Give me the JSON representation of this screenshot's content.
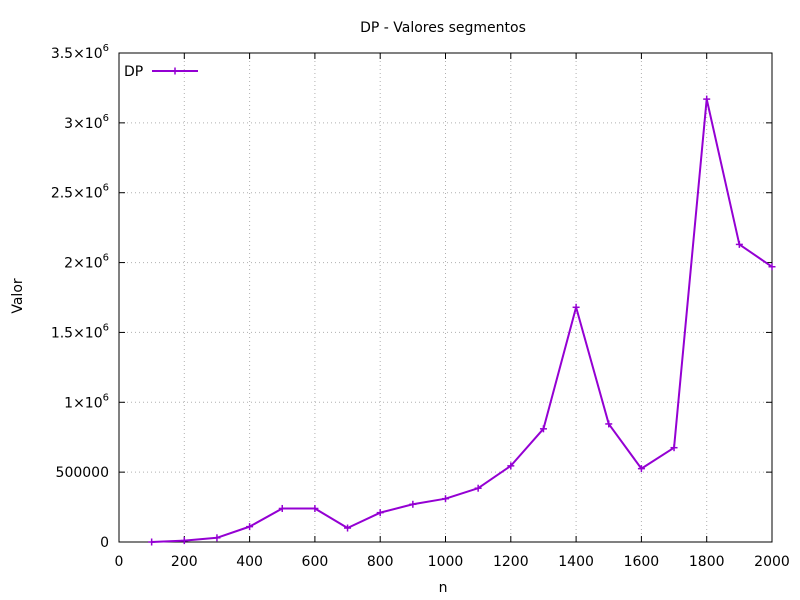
{
  "colors": {
    "series": "#9400D3",
    "grid": "#b0b0b0",
    "axis": "#000000"
  },
  "chart_data": {
    "type": "line",
    "title": "DP - Valores segmentos",
    "xlabel": "n",
    "ylabel": "Valor",
    "xlim": [
      0,
      2000
    ],
    "ylim": [
      0,
      3500000
    ],
    "x_ticks": [
      0,
      200,
      400,
      600,
      800,
      1000,
      1200,
      1400,
      1600,
      1800,
      2000
    ],
    "x_tick_labels": [
      "0",
      "200",
      "400",
      "600",
      "800",
      "1000",
      "1200",
      "1400",
      "1600",
      "1800",
      "2000"
    ],
    "y_ticks": [
      0,
      500000,
      1000000,
      1500000,
      2000000,
      2500000,
      3000000,
      3500000
    ],
    "y_tick_labels": [
      {
        "mantissa": "0",
        "exp": ""
      },
      {
        "mantissa": "500000",
        "exp": ""
      },
      {
        "mantissa": "1×10",
        "exp": "6"
      },
      {
        "mantissa": "1.5×10",
        "exp": "6"
      },
      {
        "mantissa": "2×10",
        "exp": "6"
      },
      {
        "mantissa": "2.5×10",
        "exp": "6"
      },
      {
        "mantissa": "3×10",
        "exp": "6"
      },
      {
        "mantissa": "3.5×10",
        "exp": "6"
      }
    ],
    "grid": true,
    "legend_position": "top-left",
    "marker": "plus",
    "series": [
      {
        "name": "DP",
        "x": [
          100,
          200,
          300,
          400,
          500,
          600,
          700,
          800,
          900,
          1000,
          1100,
          1200,
          1300,
          1400,
          1500,
          1600,
          1700,
          1800,
          1900,
          2000
        ],
        "values": [
          0,
          10000,
          30000,
          110000,
          240000,
          240000,
          100000,
          210000,
          270000,
          310000,
          385000,
          545000,
          810000,
          1680000,
          845000,
          525000,
          675000,
          3170000,
          2130000,
          1970000
        ]
      }
    ]
  }
}
